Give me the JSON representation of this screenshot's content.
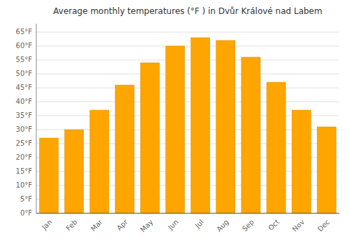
{
  "chart_data": {
    "type": "bar",
    "title": "Average monthly temperatures (°F ) in Dvůr Králové nad Labem",
    "categories": [
      "Jan",
      "Feb",
      "Mar",
      "Apr",
      "May",
      "Jun",
      "Jul",
      "Aug",
      "Sep",
      "Oct",
      "Nov",
      "Dec"
    ],
    "values": [
      27,
      30,
      37,
      46,
      54,
      60,
      63,
      62,
      56,
      47,
      37,
      31
    ],
    "color": "#FFA500",
    "ylim": [
      0,
      68
    ],
    "yticks": [
      {
        "value": 0,
        "label": "0°F"
      },
      {
        "value": 5,
        "label": "5°F"
      },
      {
        "value": 10,
        "label": "10°F"
      },
      {
        "value": 15,
        "label": "15°F"
      },
      {
        "value": 20,
        "label": "20°F"
      },
      {
        "value": 25,
        "label": "25°F"
      },
      {
        "value": 30,
        "label": "30°F"
      },
      {
        "value": 35,
        "label": "35°F"
      },
      {
        "value": 40,
        "label": "40°F"
      },
      {
        "value": 45,
        "label": "45°F"
      },
      {
        "value": 50,
        "label": "50°F"
      },
      {
        "value": 55,
        "label": "55°F"
      },
      {
        "value": 60,
        "label": "60°F"
      },
      {
        "value": 65,
        "label": "65°F"
      }
    ],
    "grid": true
  }
}
